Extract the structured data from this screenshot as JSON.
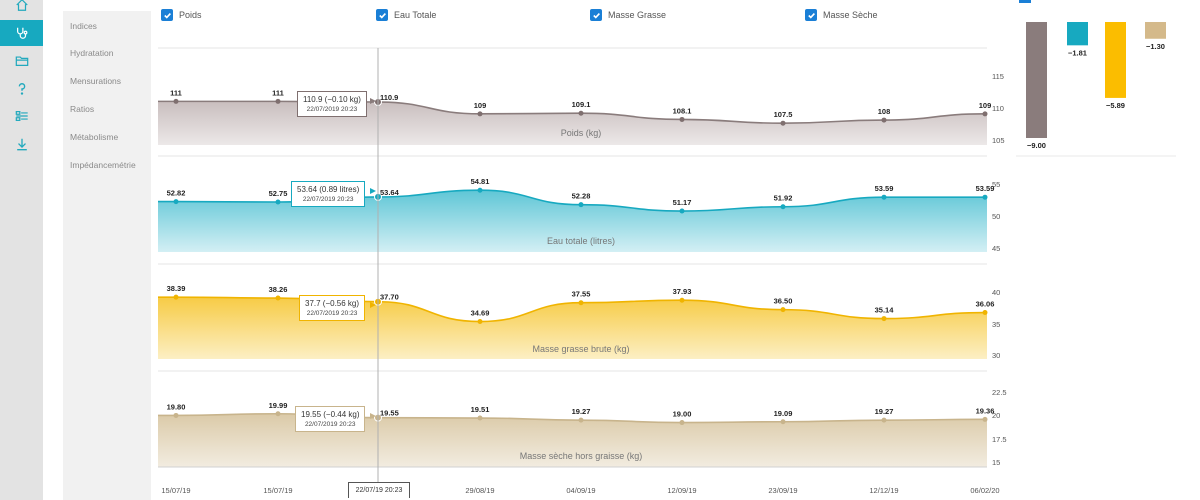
{
  "nav": {
    "icons": [
      {
        "name": "home-icon",
        "active": false
      },
      {
        "name": "stethoscope-icon",
        "active": true
      },
      {
        "name": "folder-icon",
        "active": false
      },
      {
        "name": "help-icon",
        "active": false
      },
      {
        "name": "list-settings-icon",
        "active": false
      },
      {
        "name": "download-icon",
        "active": false
      }
    ]
  },
  "submenu": {
    "items": [
      "Indices",
      "Hydratation",
      "Mensurations",
      "Ratios",
      "Métabolisme",
      "Impédancemétrie"
    ]
  },
  "legend": [
    {
      "label": "Poids",
      "checked": true
    },
    {
      "label": "Eau Totale",
      "checked": true
    },
    {
      "label": "Masse Grasse",
      "checked": true
    },
    {
      "label": "Masse Sèche",
      "checked": true
    }
  ],
  "chart_data": {
    "type": "area",
    "x_labels": [
      "15/07/19",
      "15/07/19",
      "22/07/19 20:23",
      "29/08/19",
      "04/09/19",
      "12/09/19",
      "23/09/19",
      "12/12/19",
      "06/02/20"
    ],
    "series": [
      {
        "name": "Poids",
        "title": "Poids (kg)",
        "values": [
          111,
          111,
          110.9,
          109,
          109.1,
          108.1,
          107.5,
          108,
          109
        ],
        "labels": [
          "111",
          "111",
          "110.9",
          "109",
          "109.1",
          "108.1",
          "107.5",
          "108",
          "109"
        ],
        "yticks": [
          "115",
          "110",
          "105"
        ],
        "ylim": [
          104,
          117
        ],
        "line_color": "#8a7c7c",
        "fill_top": "#c9bebe",
        "fill_bottom": "#ece8e8",
        "point_color": "#7f6f6f",
        "tooltip": {
          "value": "110.9 (−0.10 kg)",
          "date": "22/07/2019 20:23"
        }
      },
      {
        "name": "Eau Totale",
        "title": "Eau totale (litres)",
        "values": [
          52.82,
          52.75,
          53.64,
          54.81,
          52.28,
          51.17,
          51.92,
          53.59,
          53.59
        ],
        "labels": [
          "52.82",
          "52.75",
          "53.64",
          "54.81",
          "52.28",
          "51.17",
          "51.92",
          "53.59",
          "53.59"
        ],
        "yticks": [
          "55",
          "50",
          "45"
        ],
        "ylim": [
          44,
          58
        ],
        "line_color": "#17a9c0",
        "fill_top": "#5fc6d6",
        "fill_bottom": "#d3eff4",
        "point_color": "#17a9c0",
        "tooltip": {
          "value": "53.64 (0.89 litres)",
          "date": "22/07/2019 20:23"
        }
      },
      {
        "name": "Masse Grasse",
        "title": "Masse grasse brute (kg)",
        "values": [
          38.39,
          38.26,
          37.7,
          34.69,
          37.55,
          37.93,
          36.5,
          35.14,
          36.06
        ],
        "labels": [
          "38.39",
          "38.26",
          "37.70",
          "34.69",
          "37.55",
          "37.93",
          "36.50",
          "35.14",
          "36.06"
        ],
        "yticks": [
          "40",
          "35",
          "30"
        ],
        "ylim": [
          29,
          41
        ],
        "line_color": "#f0b400",
        "fill_top": "#f7cb45",
        "fill_bottom": "#fcefc4",
        "point_color": "#f0b400",
        "tooltip": {
          "value": "37.7 (−0.56 kg)",
          "date": "22/07/2019 20:23"
        }
      },
      {
        "name": "Masse Sèche",
        "title": "Masse sèche hors graisse (kg)",
        "values": [
          19.8,
          19.99,
          19.55,
          19.51,
          19.27,
          19.0,
          19.09,
          19.27,
          19.36
        ],
        "labels": [
          "19.80",
          "19.99",
          "19.55",
          "19.51",
          "19.27",
          "19.00",
          "19.09",
          "19.27",
          "19.36"
        ],
        "yticks": [
          "22.5",
          "20",
          "17.5",
          "15"
        ],
        "ylim": [
          14,
          23
        ],
        "line_color": "#c8b48c",
        "fill_top": "#dbcaa8",
        "fill_bottom": "#f2ece0",
        "point_color": "#c8b48c",
        "tooltip": {
          "value": "19.55 (−0.44 kg)",
          "date": "22/07/2019 20:23"
        }
      }
    ],
    "deltas": [
      {
        "label": "−9.00",
        "value": -9.0,
        "color": "#8a7c7c"
      },
      {
        "label": "−1.81",
        "value": -1.81,
        "color": "#17a9c0"
      },
      {
        "label": "−5.89",
        "value": -5.89,
        "color": "#fbbd00"
      },
      {
        "label": "−1.30",
        "value": -1.3,
        "color": "#d4b98a"
      }
    ]
  },
  "crosshair_date": "22/07/19 20:23"
}
